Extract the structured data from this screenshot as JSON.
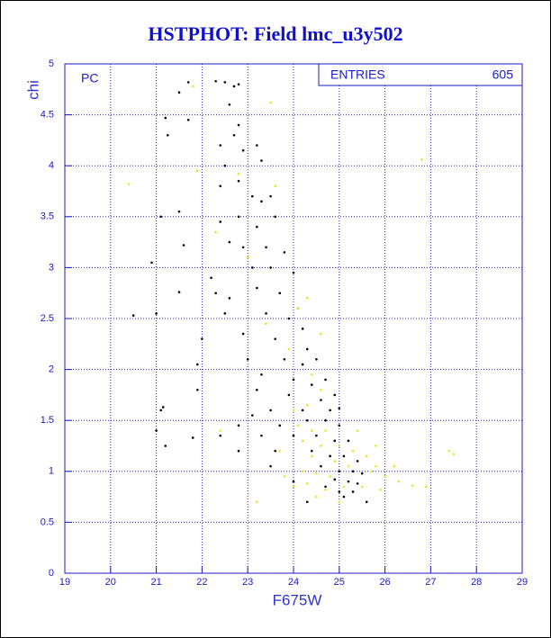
{
  "chart_data": {
    "type": "scatter",
    "title": "HSTPHOT: Field lmc_u3y502",
    "x_label": "F675W",
    "y_label": "chi",
    "annotation": "PC",
    "stats": {
      "label": "ENTRIES",
      "value": 605
    },
    "xlim": [
      19,
      29
    ],
    "xticks": [
      19,
      20,
      21,
      22,
      23,
      24,
      25,
      26,
      27,
      28,
      29
    ],
    "ylim": [
      0,
      5
    ],
    "yticks": [
      0,
      0.5,
      1,
      1.5,
      2,
      2.5,
      3,
      3.5,
      4,
      4.5,
      5
    ],
    "grid": true,
    "series": [
      {
        "color": "#000000",
        "x": [
          22.3,
          22.5,
          22.7,
          22.8,
          21.7,
          21.5,
          21.2,
          21.25,
          21.7,
          22.6,
          22.8,
          22.7,
          22.4,
          22.9,
          23.2,
          23.3,
          22.5,
          22.4,
          22.8,
          23.1,
          23.3,
          23.5,
          21.1,
          21.5,
          22.4,
          22.8,
          23.2,
          23.6,
          22.6,
          21.6,
          22.9,
          23.4,
          23.8,
          20.9,
          22.2,
          23.1,
          23.5,
          24.0,
          21.5,
          22.3,
          22.6,
          23.2,
          23.7,
          24.1,
          21.0,
          20.5,
          22.5,
          23.4,
          23.9,
          24.2,
          22.0,
          22.9,
          23.6,
          24.3,
          21.9,
          23.0,
          23.8,
          24.2,
          24.5,
          23.3,
          24.0,
          24.4,
          24.7,
          21.9,
          23.2,
          23.9,
          24.6,
          24.9,
          23.5,
          24.2,
          24.8,
          25.0,
          21.1,
          21.15,
          24.3,
          24.7,
          25.0,
          21.0,
          21.8,
          22.4,
          23.3,
          24.0,
          24.5,
          24.9,
          25.2,
          21.2,
          22.8,
          23.6,
          24.4,
          24.8,
          25.1,
          25.4,
          23.5,
          24.6,
          25.0,
          25.3,
          25.5,
          24.9,
          25.2,
          25.4,
          25.0,
          25.3,
          25.6,
          24.0,
          24.7,
          25.1,
          24.3,
          23.1,
          22.8,
          23.7
        ],
        "y": [
          4.83,
          4.82,
          4.78,
          4.8,
          4.82,
          4.72,
          4.47,
          4.3,
          4.45,
          4.6,
          4.4,
          4.3,
          4.2,
          4.15,
          4.2,
          4.05,
          4.0,
          3.8,
          3.85,
          3.7,
          3.65,
          3.7,
          3.5,
          3.55,
          3.45,
          3.5,
          3.4,
          3.5,
          3.25,
          3.22,
          3.2,
          3.2,
          3.15,
          3.05,
          2.9,
          3.0,
          3.0,
          2.95,
          2.76,
          2.75,
          2.7,
          2.8,
          2.75,
          2.6,
          2.55,
          2.53,
          2.55,
          2.55,
          2.5,
          2.4,
          2.3,
          2.35,
          2.3,
          2.2,
          2.05,
          2.1,
          2.1,
          2.05,
          2.1,
          1.95,
          1.9,
          1.85,
          1.9,
          1.8,
          1.8,
          1.75,
          1.7,
          1.75,
          1.6,
          1.6,
          1.6,
          1.62,
          1.6,
          1.63,
          1.5,
          1.5,
          1.45,
          1.4,
          1.33,
          1.35,
          1.35,
          1.35,
          1.35,
          1.3,
          1.3,
          1.25,
          1.2,
          1.2,
          1.2,
          1.15,
          1.15,
          1.1,
          1.05,
          1.05,
          1.0,
          1.0,
          0.98,
          0.92,
          0.9,
          0.88,
          0.8,
          0.8,
          0.7,
          0.9,
          0.85,
          0.75,
          0.7,
          1.55,
          1.45,
          1.45
        ]
      },
      {
        "color": "#e6e62e",
        "x": [
          20.4,
          21.8,
          23.5,
          21.9,
          22.3,
          23.0,
          24.3,
          23.9,
          24.4,
          24.6,
          24.3,
          24.1,
          24.4,
          24.7,
          24.2,
          24.6,
          25.0,
          24.4,
          24.9,
          25.3,
          25.6,
          24.2,
          24.5,
          24.8,
          25.2,
          25.7,
          26.0,
          24.3,
          24.7,
          25.1,
          25.5,
          25.9,
          26.3,
          26.6,
          26.9,
          24.0,
          23.8,
          23.7,
          24.0,
          25.4,
          25.8,
          26.2,
          27.4,
          27.5,
          23.4,
          23.2,
          22.4,
          26.8,
          25.8,
          24.5,
          25.0,
          24.1,
          23.6,
          22.8,
          24.6
        ],
        "y": [
          3.82,
          4.78,
          4.62,
          3.95,
          3.35,
          3.1,
          2.7,
          2.2,
          1.95,
          1.8,
          1.65,
          1.45,
          1.4,
          1.4,
          1.3,
          1.25,
          1.25,
          1.15,
          1.1,
          1.2,
          1.15,
          1.0,
          0.98,
          0.95,
          1.05,
          1.0,
          0.95,
          0.88,
          0.82,
          0.85,
          0.85,
          0.82,
          0.9,
          0.86,
          0.85,
          0.85,
          0.95,
          1.2,
          1.6,
          1.4,
          1.25,
          1.05,
          1.2,
          1.17,
          2.45,
          0.7,
          1.4,
          4.06,
          1.05,
          0.75,
          0.7,
          2.6,
          3.8,
          3.92,
          2.35
        ]
      }
    ]
  }
}
